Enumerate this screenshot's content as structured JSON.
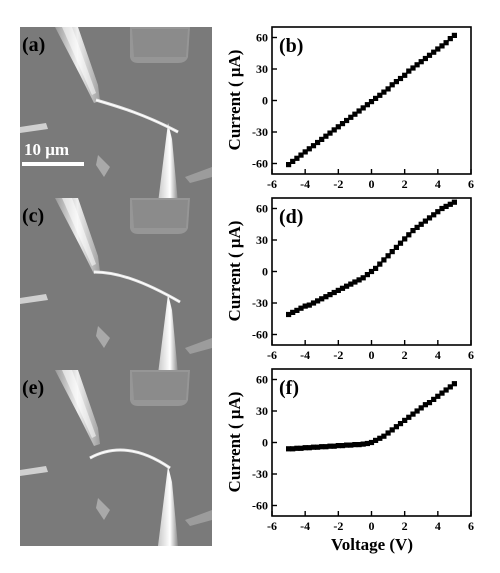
{
  "panels": {
    "a": "(a)",
    "b": "(b)",
    "c": "(c)",
    "d": "(d)",
    "e": "(e)",
    "f": "(f)"
  },
  "scale_bar": {
    "label": "10 μm"
  },
  "colors": {
    "line": "#000000",
    "sem_bg": "#7e7e7e",
    "sem_light": "#d8d8d8",
    "sem_dark": "#4a4a4a"
  },
  "chart_data": [
    {
      "type": "line",
      "panel": "(b)",
      "xlabel": "",
      "ylabel": "Current ( μA)",
      "xlim": [
        -6,
        6
      ],
      "ylim": [
        -70,
        70
      ],
      "xticks": [
        -6,
        -4,
        -2,
        0,
        2,
        4,
        6
      ],
      "yticks": [
        -60,
        -30,
        0,
        30,
        60
      ],
      "marker": "square",
      "x": [
        -5.0,
        -4.75,
        -4.5,
        -4.25,
        -4.0,
        -3.75,
        -3.5,
        -3.25,
        -3.0,
        -2.75,
        -2.5,
        -2.25,
        -2.0,
        -1.75,
        -1.5,
        -1.25,
        -1.0,
        -0.75,
        -0.5,
        -0.25,
        0.0,
        0.25,
        0.5,
        0.75,
        1.0,
        1.25,
        1.5,
        1.75,
        2.0,
        2.25,
        2.5,
        2.75,
        3.0,
        3.25,
        3.5,
        3.75,
        4.0,
        4.25,
        4.5,
        4.75,
        5.0
      ],
      "y": [
        -61,
        -58,
        -55,
        -52,
        -49,
        -46,
        -43,
        -40,
        -37,
        -34,
        -31,
        -28,
        -25,
        -22,
        -19,
        -16,
        -13,
        -10,
        -7,
        -4,
        -1,
        2,
        5,
        8,
        11,
        15,
        18,
        21,
        24,
        28,
        31,
        34,
        37,
        40,
        43,
        46,
        49,
        52,
        55,
        59,
        62
      ]
    },
    {
      "type": "line",
      "panel": "(d)",
      "xlabel": "",
      "ylabel": "Current ( μA)",
      "xlim": [
        -6,
        6
      ],
      "ylim": [
        -70,
        70
      ],
      "xticks": [
        -6,
        -4,
        -2,
        0,
        2,
        4,
        6
      ],
      "yticks": [
        -60,
        -30,
        0,
        30,
        60
      ],
      "marker": "square",
      "x": [
        -5.0,
        -4.75,
        -4.5,
        -4.25,
        -4.0,
        -3.75,
        -3.5,
        -3.25,
        -3.0,
        -2.75,
        -2.5,
        -2.25,
        -2.0,
        -1.75,
        -1.5,
        -1.25,
        -1.0,
        -0.75,
        -0.5,
        -0.25,
        0.0,
        0.25,
        0.5,
        0.75,
        1.0,
        1.25,
        1.5,
        1.75,
        2.0,
        2.25,
        2.5,
        2.75,
        3.0,
        3.25,
        3.5,
        3.75,
        4.0,
        4.25,
        4.5,
        4.75,
        5.0
      ],
      "y": [
        -41,
        -39,
        -37,
        -35,
        -33,
        -32,
        -30,
        -28,
        -26,
        -24,
        -22,
        -20,
        -18,
        -16,
        -14,
        -12,
        -10,
        -8,
        -6,
        -3,
        0,
        3,
        7,
        11,
        15,
        19,
        23,
        27,
        31,
        35,
        39,
        42,
        45,
        48,
        51,
        54,
        57,
        60,
        62,
        64,
        66
      ]
    },
    {
      "type": "line",
      "panel": "(f)",
      "xlabel": "Voltage (V)",
      "ylabel": "Current ( μA)",
      "xlim": [
        -6,
        6
      ],
      "ylim": [
        -70,
        70
      ],
      "xticks": [
        -6,
        -4,
        -2,
        0,
        2,
        4,
        6
      ],
      "yticks": [
        -60,
        -30,
        0,
        30,
        60
      ],
      "marker": "square",
      "x": [
        -5.0,
        -4.75,
        -4.5,
        -4.25,
        -4.0,
        -3.75,
        -3.5,
        -3.25,
        -3.0,
        -2.75,
        -2.5,
        -2.25,
        -2.0,
        -1.75,
        -1.5,
        -1.25,
        -1.0,
        -0.75,
        -0.5,
        -0.25,
        0.0,
        0.25,
        0.5,
        0.75,
        1.0,
        1.25,
        1.5,
        1.75,
        2.0,
        2.25,
        2.5,
        2.75,
        3.0,
        3.25,
        3.5,
        3.75,
        4.0,
        4.25,
        4.5,
        4.75,
        5.0
      ],
      "y": [
        -6,
        -6,
        -5.5,
        -5.5,
        -5,
        -5,
        -4.5,
        -4.5,
        -4,
        -4,
        -3.5,
        -3.5,
        -3,
        -3,
        -2.5,
        -2.5,
        -2,
        -2,
        -1.5,
        -1,
        0,
        2,
        4,
        6,
        9,
        12,
        15,
        18,
        21,
        24,
        27,
        30,
        33,
        36,
        38,
        41,
        44,
        47,
        50,
        53,
        56
      ]
    }
  ]
}
